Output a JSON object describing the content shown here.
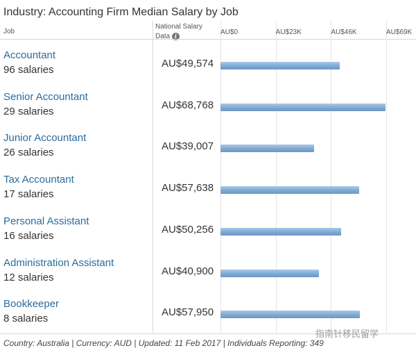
{
  "title": "Industry: Accounting Firm Median Salary by Job",
  "headers": {
    "job": "Job",
    "national_line1": "National Salary",
    "national_line2": "Data"
  },
  "chart_data": {
    "type": "bar",
    "orientation": "horizontal",
    "title": "Industry: Accounting Firm Median Salary by Job",
    "categories": [
      "Accountant",
      "Senior Accountant",
      "Junior Accountant",
      "Tax Accountant",
      "Personal Assistant",
      "Administration Assistant",
      "Bookkeeper"
    ],
    "counts": [
      "96 salaries",
      "29 salaries",
      "26 salaries",
      "17 salaries",
      "16 salaries",
      "12 salaries",
      "8 salaries"
    ],
    "value_labels": [
      "AU$49,574",
      "AU$68,768",
      "AU$39,007",
      "AU$57,638",
      "AU$50,256",
      "AU$40,900",
      "AU$57,950"
    ],
    "values": [
      49574,
      68768,
      39007,
      57638,
      50256,
      40900,
      57950
    ],
    "xlim": [
      0,
      69000
    ],
    "ticks": [
      0,
      23000,
      46000,
      69000
    ],
    "tick_labels": [
      "AU$0",
      "AU$23K",
      "AU$46K",
      "AU$69K"
    ],
    "grid": true,
    "bar_color": "#7fa9d4"
  },
  "footer": "Country: Australia | Currency: AUD | Updated: 11 Feb 2017 | Individuals Reporting: 349",
  "watermark": "指南针移民留学"
}
